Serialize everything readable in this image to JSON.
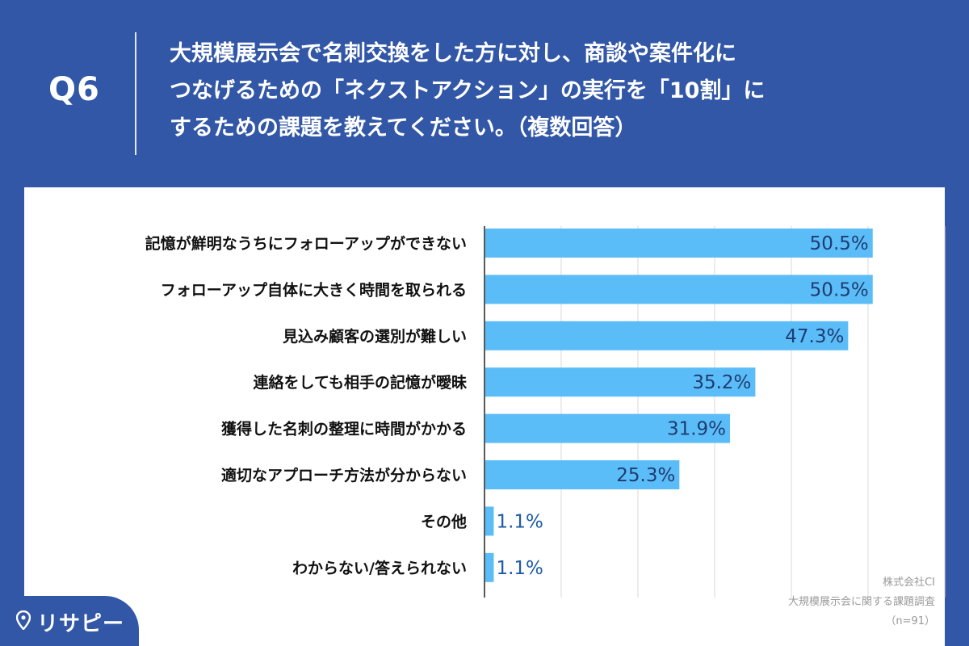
{
  "header": {
    "question_label": "Q6",
    "question_lines": [
      "大規模展示会で名刺交換をした方に対し、商談や案件化に",
      "つなげるための「ネクストアクション」の実行を「10割」に",
      "するための課題を教えてください。（複数回答）"
    ]
  },
  "logo": {
    "text": "リサピー",
    "icon": "map-pin-icon"
  },
  "source": {
    "company": "株式会社CI",
    "survey": "大規模展示会に関する課題調査",
    "sample": "（n=91）"
  },
  "colors": {
    "header_bg": "#3257a6",
    "bar": "#5bbdf7",
    "label_dark": "#1f3b73",
    "label_light": "#1e5aa8",
    "grid": "#d9d9d9"
  },
  "chart_data": {
    "type": "bar",
    "orientation": "horizontal",
    "title": "",
    "xlabel": "",
    "ylabel": "",
    "xlim": [
      0,
      60
    ],
    "grid": true,
    "unit": "%",
    "categories": [
      "記憶が鮮明なうちにフォローアップができない",
      "フォローアップ自体に大きく時間を取られる",
      "見込み顧客の選別が難しい",
      "連絡をしても相手の記憶が曖昧",
      "獲得した名刺の整理に時間がかかる",
      "適切なアプローチ方法が分からない",
      "その他",
      "わからない/答えられない"
    ],
    "values": [
      50.5,
      50.5,
      47.3,
      35.2,
      31.9,
      25.3,
      1.1,
      1.1
    ],
    "value_labels": [
      "50.5%",
      "50.5%",
      "47.3%",
      "35.2%",
      "31.9%",
      "25.3%",
      "1.1%",
      "1.1%"
    ]
  }
}
